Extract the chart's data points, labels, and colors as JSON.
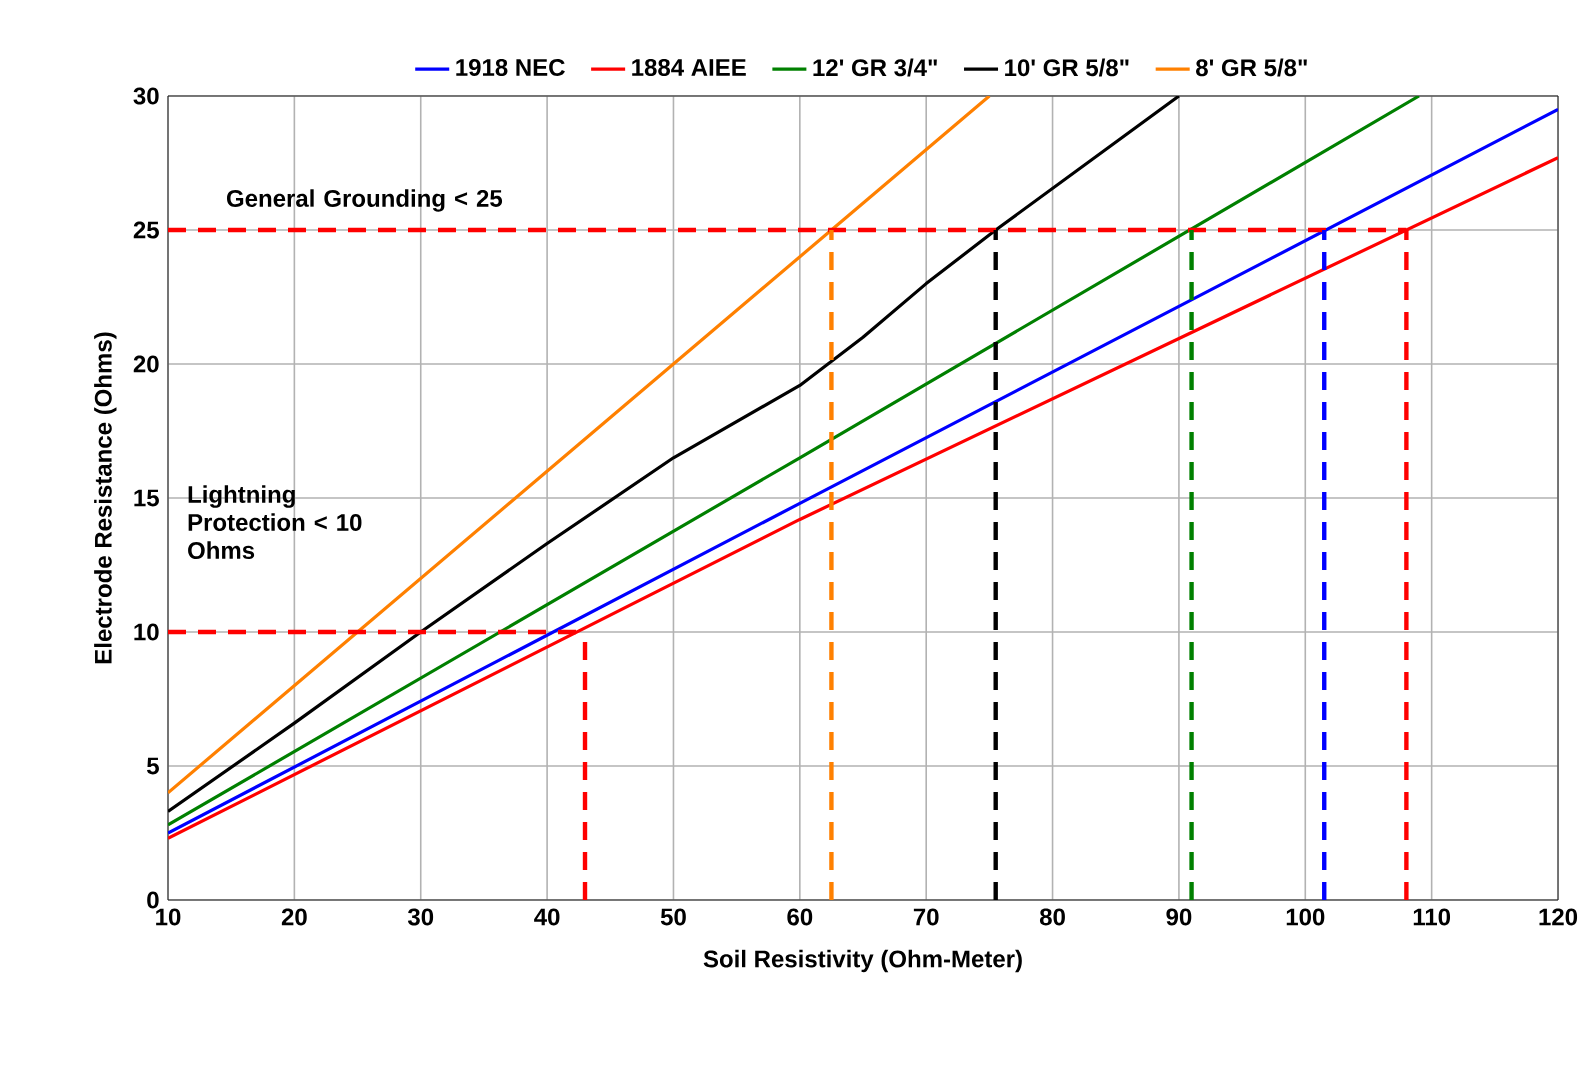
{
  "chart_data": {
    "type": "line",
    "xlabel": "Soil Resistivity (Ohm-Meter)",
    "ylabel": "Electrode Resistance  (Ohms)",
    "xlim": [
      10,
      120
    ],
    "ylim": [
      0,
      30
    ],
    "xticks": [
      10,
      20,
      30,
      40,
      50,
      60,
      70,
      80,
      90,
      100,
      110,
      120
    ],
    "yticks": [
      0,
      5,
      10,
      15,
      20,
      25,
      30
    ],
    "grid": true,
    "legend": "top",
    "line_style": "solid",
    "marker": "none",
    "annotations": [
      "General Grounding < 25",
      "Lightning Protection < 10 Ohms"
    ],
    "series": [
      {
        "name": "1918 NEC",
        "color": "#0000ff",
        "x": [
          10,
          60,
          120
        ],
        "values": [
          2.5,
          14.8,
          29.5
        ]
      },
      {
        "name": "1884 AIEE",
        "color": "#ff0000",
        "x": [
          10,
          60,
          120
        ],
        "values": [
          2.3,
          14.2,
          27.7
        ]
      },
      {
        "name": "12' GR 3/4\"",
        "color": "#008000",
        "x": [
          10,
          60,
          109
        ],
        "values": [
          2.8,
          16.5,
          30
        ]
      },
      {
        "name": "10' GR 5/8\"",
        "color": "#000000",
        "x": [
          10,
          20,
          30,
          40,
          50,
          60,
          65,
          70,
          75.5,
          90
        ],
        "values": [
          3.3,
          6.6,
          10,
          13.3,
          16.5,
          19.2,
          21,
          23,
          25,
          30
        ]
      },
      {
        "name": "8' GR 5/8\"",
        "color": "#ff8000",
        "x": [
          10,
          62.5,
          75
        ],
        "values": [
          4,
          25,
          30
        ]
      },
      {
        "color": "#ff0000",
        "line_style": "dashed",
        "x": [
          10,
          108
        ],
        "values": [
          25,
          25
        ]
      },
      {
        "color": "#ff0000",
        "line_style": "dashed",
        "x": [
          10,
          43
        ],
        "values": [
          10,
          10
        ]
      },
      {
        "color": "#ff0000",
        "line_style": "dashed",
        "x": [
          43,
          43
        ],
        "values": [
          0,
          10
        ]
      },
      {
        "color": "#ff8000",
        "line_style": "dashed",
        "x": [
          62.5,
          62.5
        ],
        "values": [
          0,
          25
        ]
      },
      {
        "color": "#000000",
        "line_style": "dashed",
        "x": [
          75.5,
          75.5
        ],
        "values": [
          0,
          25
        ]
      },
      {
        "color": "#008000",
        "line_style": "dashed",
        "x": [
          91,
          91
        ],
        "values": [
          0,
          25
        ]
      },
      {
        "color": "#0000ff",
        "line_style": "dashed",
        "x": [
          101.5,
          101.5
        ],
        "values": [
          0,
          25
        ]
      },
      {
        "color": "#ff0000",
        "line_style": "dashed",
        "x": [
          108,
          108
        ],
        "values": [
          0,
          25
        ]
      }
    ]
  }
}
